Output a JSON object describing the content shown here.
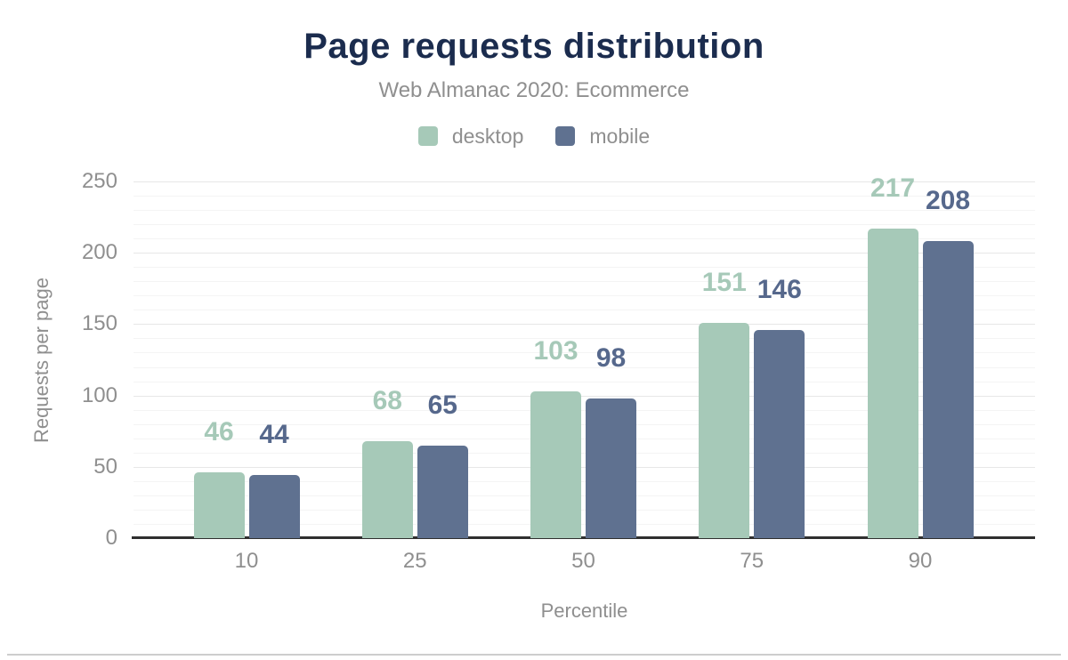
{
  "title": "Page requests distribution",
  "subtitle": "Web Almanac 2020: Ecommerce",
  "colors": {
    "title": "#1b2c4e",
    "muted_text": "#8f8f8f",
    "desktop": "#a6c9b8",
    "mobile": "#5f7190",
    "desktop_label": "#a6c9b8",
    "mobile_label": "#56688c",
    "axis_line": "#2f2f2f",
    "grid_major": "#e7e7e7",
    "grid_minor": "#f4f4f4"
  },
  "chart_data": {
    "type": "bar",
    "title": "Page requests distribution",
    "subtitle": "Web Almanac 2020: Ecommerce",
    "categories": [
      "10",
      "25",
      "50",
      "75",
      "90"
    ],
    "series": [
      {
        "name": "desktop",
        "color": "#a6c9b8",
        "label_color": "#a6c9b8",
        "values": [
          46,
          68,
          103,
          151,
          217
        ]
      },
      {
        "name": "mobile",
        "color": "#5f7190",
        "label_color": "#56688c",
        "values": [
          44,
          65,
          98,
          146,
          208
        ]
      }
    ],
    "xlabel": "Percentile",
    "ylabel": "Requests per page",
    "ylim": [
      0,
      250
    ],
    "yticks": [
      0,
      50,
      100,
      150,
      200,
      250
    ],
    "minor_tick_step": 10,
    "grid": true,
    "legend_position": "top",
    "data_labels": true
  }
}
